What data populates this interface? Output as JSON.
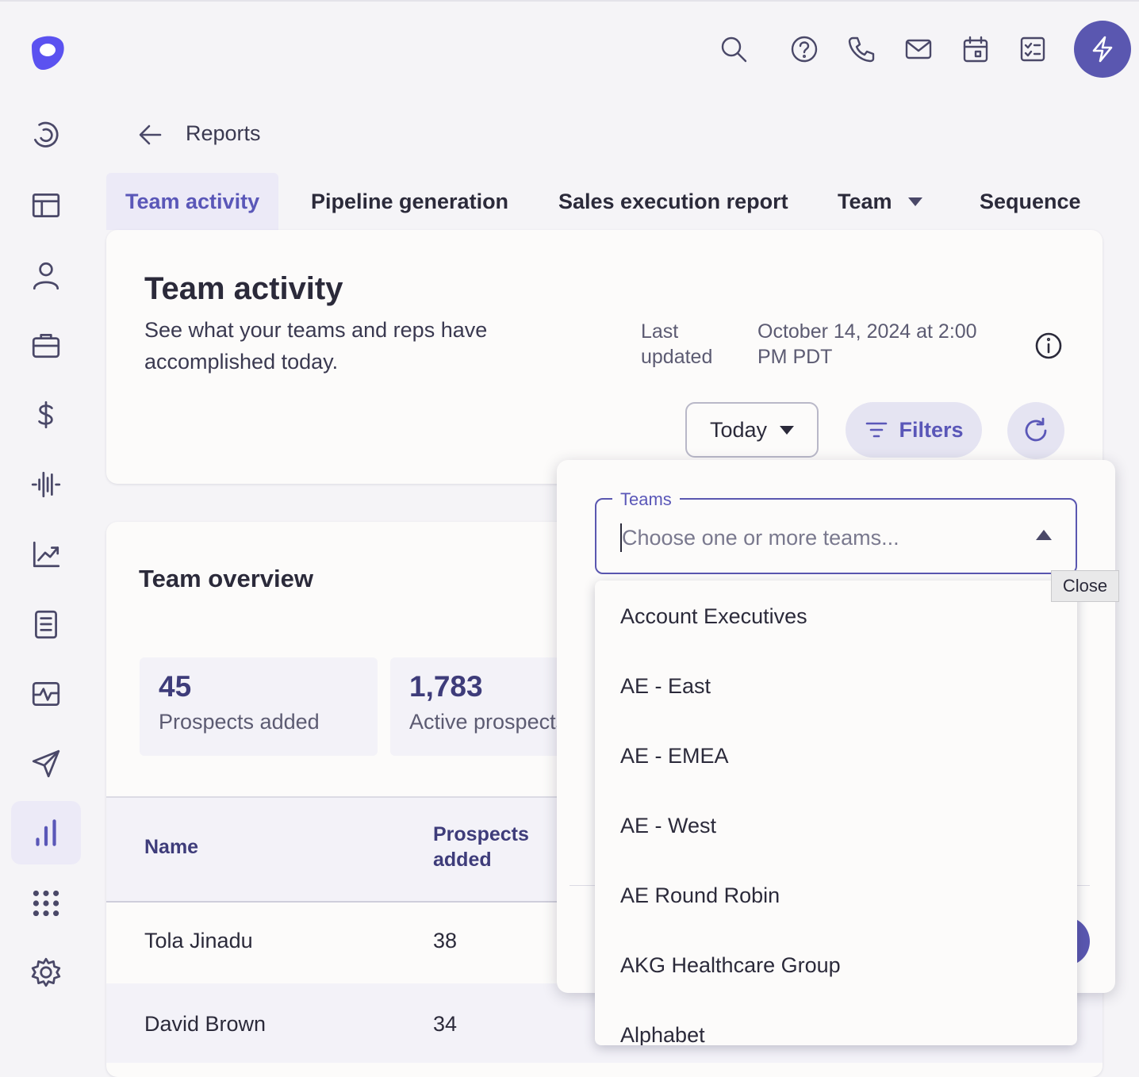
{
  "breadcrumb": {
    "label": "Reports"
  },
  "tabs": [
    {
      "label": "Team activity"
    },
    {
      "label": "Pipeline generation"
    },
    {
      "label": "Sales execution report"
    },
    {
      "label": "Team"
    },
    {
      "label": "Sequence"
    }
  ],
  "header": {
    "title": "Team activity",
    "subtitle": "See what your teams and reps have accomplished today.",
    "last_updated_label": "Last updated",
    "last_updated_value": "October 14, 2024 at 2:00 PM PDT"
  },
  "controls": {
    "date_range": "Today",
    "filters_label": "Filters"
  },
  "overview": {
    "title": "Team overview",
    "stats": [
      {
        "value": "45",
        "label": "Prospects added"
      },
      {
        "value": "1,783",
        "label": "Active prospects"
      }
    ]
  },
  "table": {
    "columns": [
      "Name",
      "Prospects added"
    ],
    "rows": [
      {
        "name": "Tola Jinadu",
        "prospects_added": "38"
      },
      {
        "name": "David Brown",
        "prospects_added": "34"
      }
    ]
  },
  "filter_popup": {
    "teams_label": "Teams",
    "teams_placeholder": "Choose one or more teams...",
    "close_tooltip": "Close",
    "options": [
      "Account Executives",
      "AE - East",
      "AE - EMEA",
      "AE - West",
      "AE Round Robin",
      "AKG Healthcare Group",
      "Alphabet"
    ]
  },
  "colors": {
    "accent": "#5a57b8",
    "brand_logo": "#5b52f0",
    "background": "#f5f4f7"
  }
}
